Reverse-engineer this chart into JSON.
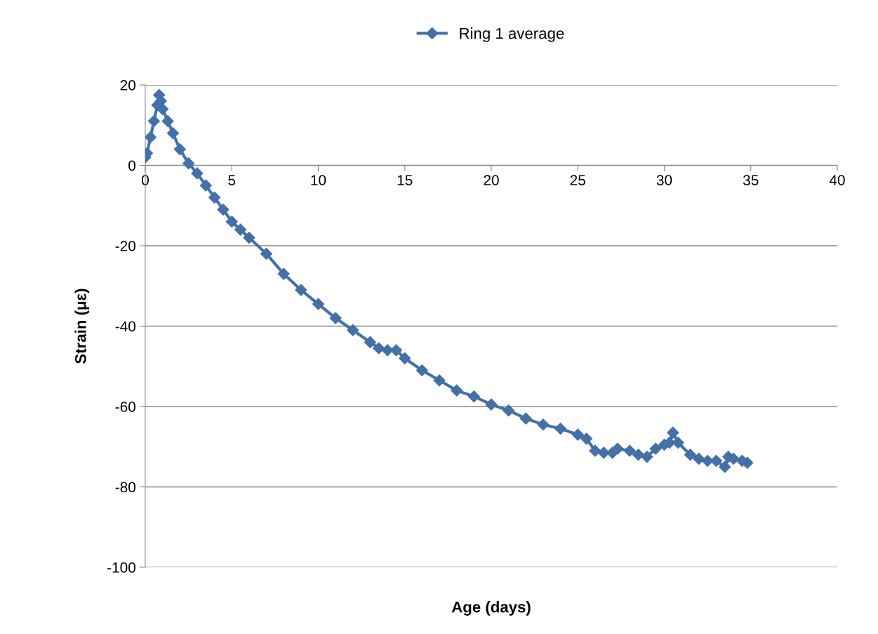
{
  "chart_data": {
    "type": "line",
    "xlabel": "Age (days)",
    "ylabel": "Strain (με)",
    "xlim": [
      0,
      40
    ],
    "xticks": [
      0,
      5,
      10,
      15,
      20,
      25,
      30,
      35,
      40
    ],
    "ylim": [
      -100,
      20
    ],
    "yticks": [
      -100,
      -80,
      -60,
      -40,
      -20,
      0,
      20
    ],
    "grid": "y",
    "legend": "top",
    "marker": "diamond",
    "line_style": "solid",
    "series": [
      {
        "name": "Ring 1 average",
        "color": "#4470a8",
        "x": [
          0,
          0.1,
          0.3,
          0.5,
          0.7,
          0.8,
          0.9,
          1.0,
          1.3,
          1.6,
          2,
          2.5,
          3,
          3.5,
          4,
          4.5,
          5,
          5.5,
          6,
          7,
          8,
          9,
          10,
          11,
          12,
          13,
          13.5,
          14,
          14.5,
          15,
          16,
          17,
          18,
          19,
          20,
          21,
          22,
          23,
          24,
          25,
          25.5,
          26,
          26.5,
          27,
          27.3,
          28,
          28.5,
          29,
          29.5,
          30,
          30.3,
          30.5,
          30.8,
          31.5,
          32,
          32.5,
          33,
          33.5,
          33.7,
          34,
          34.5,
          34.8
        ],
        "values": [
          2,
          3,
          7,
          11,
          15,
          17.5,
          16,
          14,
          11,
          8,
          4,
          0.5,
          -2,
          -5,
          -8,
          -11,
          -14,
          -16,
          -18,
          -22,
          -27,
          -31,
          -34.5,
          -38,
          -41,
          -44,
          -45.5,
          -46,
          -46,
          -48,
          -51,
          -53.5,
          -56,
          -57.5,
          -59.5,
          -61,
          -63,
          -64.5,
          -65.5,
          -67,
          -68,
          -71,
          -71.5,
          -71.5,
          -70.5,
          -71,
          -72,
          -72.5,
          -70.5,
          -69.5,
          -69,
          -66.5,
          -69,
          -72,
          -73,
          -73.5,
          -73.5,
          -75,
          -72.5,
          -73,
          -73.5,
          -74
        ]
      }
    ]
  }
}
